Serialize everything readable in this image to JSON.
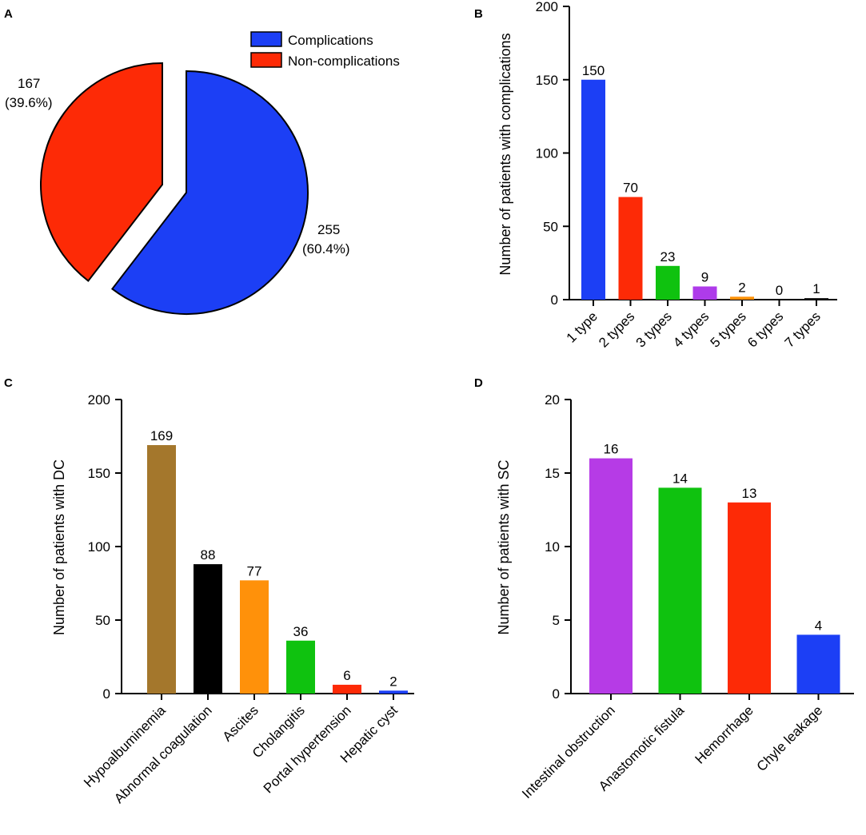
{
  "panels": [
    "A",
    "B",
    "C",
    "D"
  ],
  "chart_data": [
    {
      "panel": "A",
      "type": "pie",
      "legend": [
        "Complications",
        "Non-complications"
      ],
      "slices": [
        {
          "name": "Complications",
          "value": 255,
          "label": "255",
          "pct": "(60.4%)",
          "color": "#1c3ff5"
        },
        {
          "name": "Non-complications",
          "value": 167,
          "label": "167",
          "pct": "(39.6%)",
          "color": "#fd2a06"
        }
      ]
    },
    {
      "panel": "B",
      "type": "bar",
      "ylabel": "Number of patients with complications",
      "ylim": [
        0,
        200
      ],
      "yticks": [
        0,
        50,
        100,
        150,
        200
      ],
      "categories": [
        "1 type",
        "2 types",
        "3 types",
        "4 types",
        "5 types",
        "6 types",
        "7 types"
      ],
      "values": [
        150,
        70,
        23,
        9,
        2,
        0,
        1
      ],
      "colors": [
        "#1c3ff5",
        "#fd2a06",
        "#0fc20f",
        "#ae3bea",
        "#ff9108",
        "#9b7c2e",
        "#000000"
      ]
    },
    {
      "panel": "C",
      "type": "bar",
      "ylabel": "Number of patients with DC",
      "ylim": [
        0,
        200
      ],
      "yticks": [
        0,
        50,
        100,
        150,
        200
      ],
      "categories": [
        "Hypoalbuminemia",
        "Abnormal coagulation",
        "Ascites",
        "Cholangitis",
        "Portal hypertension",
        "Hepatic cyst"
      ],
      "values": [
        169,
        88,
        77,
        36,
        6,
        2
      ],
      "colors": [
        "#a4772c",
        "#000000",
        "#ff910a",
        "#0fc20f",
        "#fd2a06",
        "#1c3ff5"
      ]
    },
    {
      "panel": "D",
      "type": "bar",
      "ylabel": "Number of patients with SC",
      "ylim": [
        0,
        20
      ],
      "yticks": [
        0,
        5,
        10,
        15,
        20
      ],
      "categories": [
        "Intestinal obstruction",
        "Anastomotic fistula",
        "Hemorrhage",
        "Chyle leakage"
      ],
      "values": [
        16,
        14,
        13,
        4
      ],
      "colors": [
        "#b63be6",
        "#0fc20f",
        "#fd2a06",
        "#1c3ff5"
      ]
    }
  ]
}
